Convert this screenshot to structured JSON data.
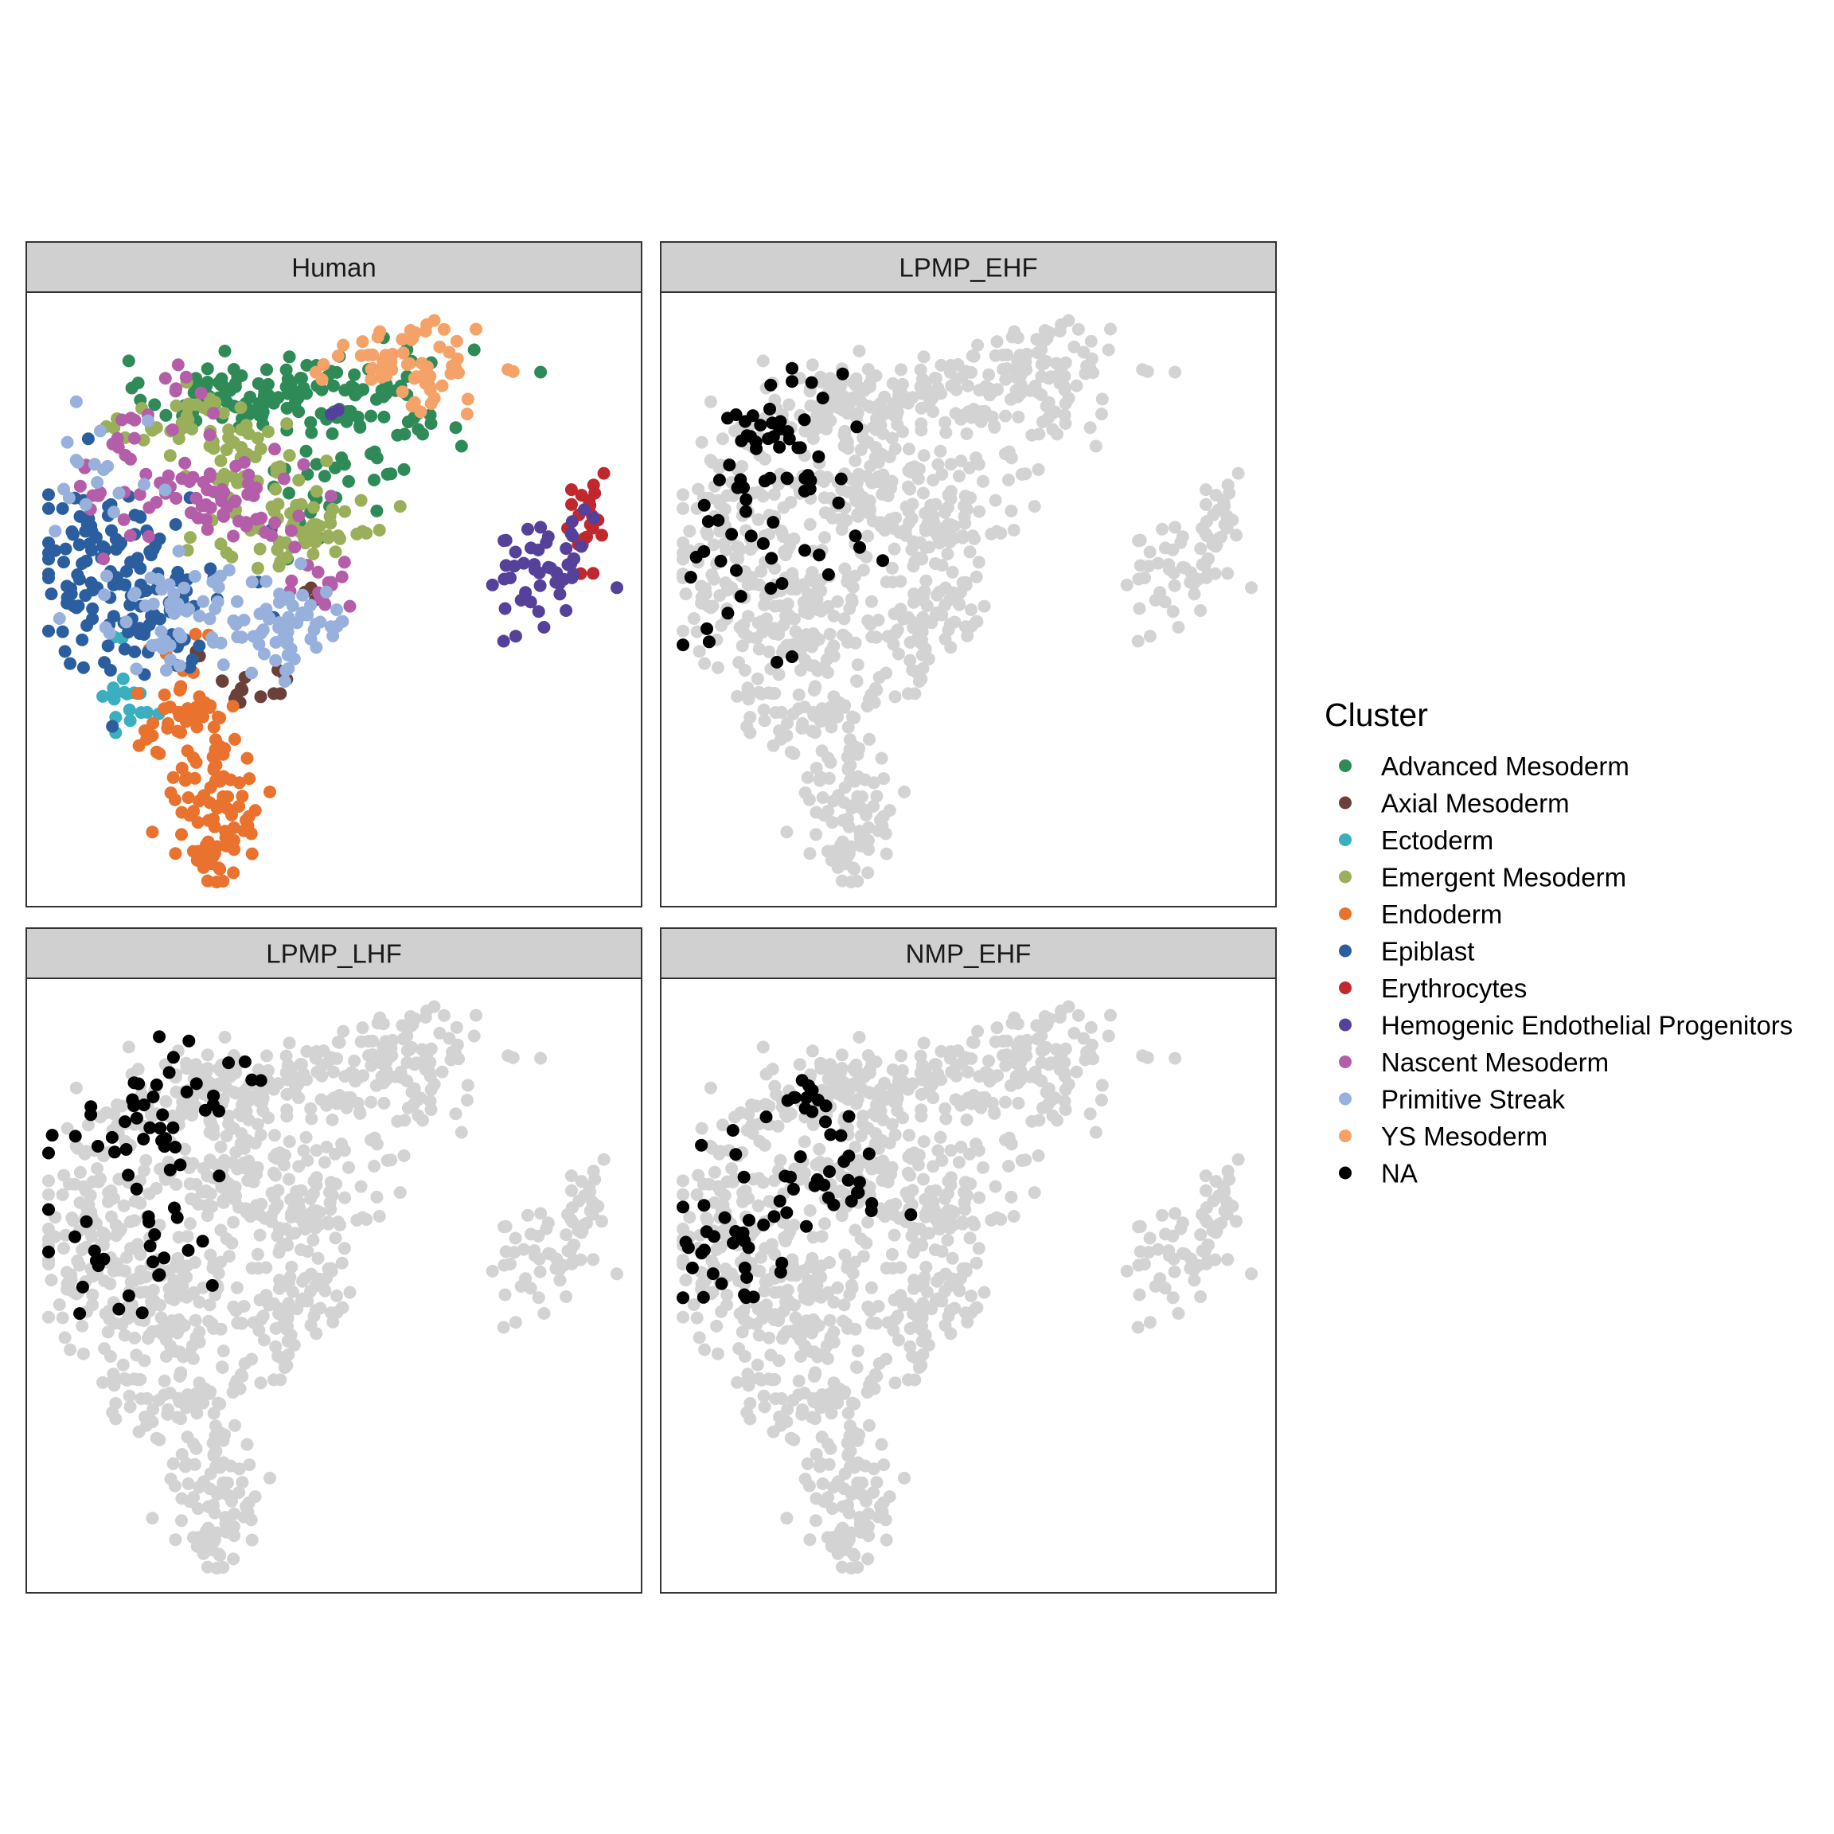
{
  "legend": {
    "title": "Cluster",
    "items": [
      {
        "label": "Advanced Mesoderm",
        "color": "#2E8B57"
      },
      {
        "label": "Axial Mesoderm",
        "color": "#6B4038"
      },
      {
        "label": "Ectoderm",
        "color": "#3AAFBF"
      },
      {
        "label": "Emergent Mesoderm",
        "color": "#9AAF5A"
      },
      {
        "label": "Endoderm",
        "color": "#E8722E"
      },
      {
        "label": "Epiblast",
        "color": "#2B5E9E"
      },
      {
        "label": "Erythrocytes",
        "color": "#C0282E"
      },
      {
        "label": "Hemogenic Endothelial Progenitors",
        "color": "#55409A"
      },
      {
        "label": "Nascent Mesoderm",
        "color": "#B45EAA"
      },
      {
        "label": "Primitive Streak",
        "color": "#98B1DC"
      },
      {
        "label": "YS Mesoderm",
        "color": "#F4A268"
      },
      {
        "label": "NA",
        "color": "#000000"
      }
    ]
  },
  "chart_data": {
    "type": "scatter",
    "facets": [
      "Human",
      "LPMP_EHF",
      "LPMP_LHF",
      "NMP_EHF"
    ],
    "background_color": "#D3D3D3",
    "highlight_color": "#000000",
    "strip_color": "#D0D0D0",
    "xlim": [
      0,
      100
    ],
    "ylim": [
      0,
      100
    ],
    "grid": false,
    "legend_position": "right",
    "clusters": [
      {
        "name": "Advanced Mesoderm",
        "color": "#2E8B57",
        "regions": [
          {
            "c": [
              31,
              86
            ],
            "r": [
              7,
              3
            ],
            "n": 70
          },
          {
            "c": [
              54,
              86
            ],
            "r": [
              10,
              5
            ],
            "n": 75
          },
          {
            "c": [
              50,
              70
            ],
            "r": [
              7,
              5
            ],
            "n": 28
          }
        ]
      },
      {
        "name": "Axial Mesoderm",
        "color": "#6B4038",
        "regions": [
          {
            "c": [
              35,
              35
            ],
            "r": [
              4,
              2
            ],
            "n": 14
          },
          {
            "c": [
              46,
              52
            ],
            "r": [
              1,
              2
            ],
            "n": 3
          },
          {
            "c": [
              26,
              40
            ],
            "r": [
              1,
              1
            ],
            "n": 2
          }
        ]
      },
      {
        "name": "Ectoderm",
        "color": "#3AAFBF",
        "regions": [
          {
            "c": [
              14,
              33
            ],
            "r": [
              3,
              3
            ],
            "n": 16
          },
          {
            "c": [
              13,
              43
            ],
            "r": [
              1,
              1
            ],
            "n": 2
          }
        ]
      },
      {
        "name": "Emergent Mesoderm",
        "color": "#9AAF5A",
        "regions": [
          {
            "c": [
              25,
              80
            ],
            "r": [
              6,
              3
            ],
            "n": 35
          },
          {
            "c": [
              36,
              73
            ],
            "r": [
              5,
              4
            ],
            "n": 45
          },
          {
            "c": [
              45,
              62
            ],
            "r": [
              8,
              4
            ],
            "n": 55
          }
        ]
      },
      {
        "name": "Endoderm",
        "color": "#E8722E",
        "regions": [
          {
            "c": [
              23,
              30
            ],
            "r": [
              5,
              4
            ],
            "n": 40
          },
          {
            "c": [
              30,
              16
            ],
            "r": [
              5,
              6
            ],
            "n": 60
          },
          {
            "c": [
              29,
              6
            ],
            "r": [
              4,
              3
            ],
            "n": 28
          },
          {
            "c": [
              27,
              45
            ],
            "r": [
              1,
              1
            ],
            "n": 2
          }
        ]
      },
      {
        "name": "Epiblast",
        "color": "#2B5E9E",
        "regions": [
          {
            "c": [
              13,
              54
            ],
            "r": [
              9,
              8
            ],
            "n": 130
          },
          {
            "c": [
              5,
              62
            ],
            "r": [
              2,
              3
            ],
            "n": 10
          },
          {
            "c": [
              20,
              44
            ],
            "r": [
              3,
              3
            ],
            "n": 15
          }
        ]
      },
      {
        "name": "Erythrocytes",
        "color": "#C0282E",
        "regions": [
          {
            "c": [
              94.5,
              62
            ],
            "r": [
              2,
              4
            ],
            "n": 24
          }
        ]
      },
      {
        "name": "Hemogenic Endothelial Progenitors",
        "color": "#55409A",
        "regions": [
          {
            "c": [
              88,
              58
            ],
            "r": [
              5,
              5
            ],
            "n": 34
          },
          {
            "c": [
              85,
              50
            ],
            "r": [
              4,
              4
            ],
            "n": 14
          },
          {
            "c": [
              49,
              83
            ],
            "r": [
              1,
              1
            ],
            "n": 2
          }
        ]
      },
      {
        "name": "Nascent Mesoderm",
        "color": "#B45EAA",
        "regions": [
          {
            "c": [
              22,
              72
            ],
            "r": [
              8,
              6
            ],
            "n": 60
          },
          {
            "c": [
              36,
              65
            ],
            "r": [
              6,
              3
            ],
            "n": 25
          },
          {
            "c": [
              48,
              54
            ],
            "r": [
              4,
              3
            ],
            "n": 15
          },
          {
            "c": [
              23,
              86
            ],
            "r": [
              2,
              2
            ],
            "n": 6
          }
        ]
      },
      {
        "name": "Primitive Streak",
        "color": "#98B1DC",
        "regions": [
          {
            "c": [
              25,
              49
            ],
            "r": [
              10,
              4
            ],
            "n": 50
          },
          {
            "c": [
              42,
              45
            ],
            "r": [
              6,
              4
            ],
            "n": 55
          },
          {
            "c": [
              10,
              70
            ],
            "r": [
              4,
              6
            ],
            "n": 18
          },
          {
            "c": [
              21,
              41
            ],
            "r": [
              3,
              3
            ],
            "n": 10
          }
        ]
      },
      {
        "name": "YS Mesoderm",
        "color": "#F4A268",
        "regions": [
          {
            "c": [
              61,
              92
            ],
            "r": [
              7,
              3
            ],
            "n": 55
          },
          {
            "c": [
              68,
              87
            ],
            "r": [
              3,
              3
            ],
            "n": 12
          }
        ]
      }
    ],
    "highlights": {
      "LPMP_EHF": [
        {
          "c": [
            15,
            74
          ],
          "r": [
            6,
            7
          ],
          "n": 45
        },
        {
          "c": [
            13,
            58
          ],
          "r": [
            6,
            7
          ],
          "n": 25
        },
        {
          "c": [
            28,
            88
          ],
          "r": [
            4,
            2
          ],
          "n": 4
        },
        {
          "c": [
            32,
            61
          ],
          "r": [
            3,
            2
          ],
          "n": 3
        }
      ],
      "LPMP_LHF": [
        {
          "c": [
            18,
            78
          ],
          "r": [
            6,
            7
          ],
          "n": 42
        },
        {
          "c": [
            12,
            58
          ],
          "r": [
            8,
            9
          ],
          "n": 28
        },
        {
          "c": [
            34,
            87
          ],
          "r": [
            2,
            2
          ],
          "n": 4
        }
      ],
      "NMP_EHF": [
        {
          "c": [
            22,
            83
          ],
          "r": [
            3,
            2
          ],
          "n": 14
        },
        {
          "c": [
            25,
            70
          ],
          "r": [
            4,
            4
          ],
          "n": 22
        },
        {
          "c": [
            10,
            59
          ],
          "r": [
            6,
            7
          ],
          "n": 36
        },
        {
          "c": [
            40,
            63
          ],
          "r": [
            1,
            1
          ],
          "n": 1
        },
        {
          "c": [
            32,
            65
          ],
          "r": [
            2,
            2
          ],
          "n": 3
        }
      ]
    }
  }
}
